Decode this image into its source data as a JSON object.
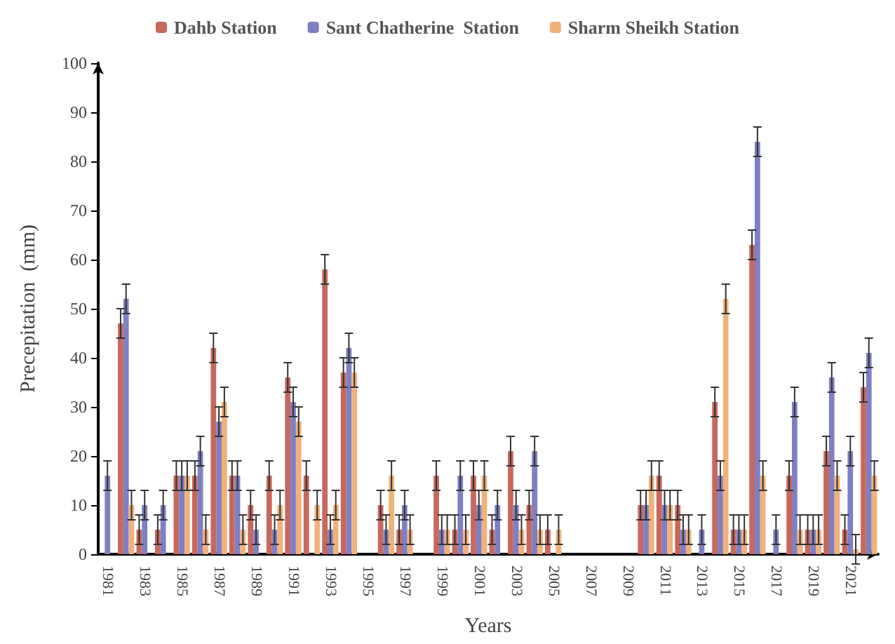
{
  "chart_data": {
    "type": "bar",
    "xlabel": "Years",
    "ylabel": "Precepitation  (mm)",
    "categories": [
      "1981",
      null,
      "1983",
      null,
      "1985",
      null,
      "1987",
      null,
      "1989",
      null,
      "1991",
      null,
      "1993",
      null,
      "1995",
      null,
      "1997",
      null,
      "1999",
      null,
      "2001",
      null,
      "2003",
      null,
      "2005",
      null,
      "2007",
      null,
      "2009",
      null,
      "2011",
      null,
      "2013",
      null,
      "2015",
      null,
      "2017",
      null,
      "2019",
      null,
      "2021",
      null
    ],
    "ylim": [
      0,
      100
    ],
    "yticks": [
      0,
      10,
      20,
      30,
      40,
      50,
      60,
      70,
      80,
      90,
      100
    ],
    "grid": false,
    "legend": "top",
    "series": [
      {
        "name": "Dahb Station",
        "color": "#c8685c",
        "values": [
          0,
          47,
          5,
          5,
          16,
          16,
          42,
          16,
          10,
          16,
          36,
          16,
          58,
          37,
          0,
          10,
          5,
          0,
          16,
          5,
          16,
          5,
          21,
          10,
          5,
          0,
          0,
          0,
          0,
          10,
          16,
          10,
          0,
          31,
          5,
          63,
          0,
          16,
          5,
          21,
          5,
          34
        ],
        "errors": [
          null,
          3,
          3,
          3,
          3,
          3,
          3,
          3,
          3,
          3,
          3,
          3,
          3,
          3,
          null,
          3,
          3,
          null,
          3,
          3,
          3,
          3,
          3,
          3,
          3,
          null,
          null,
          null,
          null,
          3,
          3,
          3,
          null,
          3,
          3,
          3,
          null,
          3,
          3,
          3,
          3,
          3
        ]
      },
      {
        "name": "Sant Chatherine  Station",
        "color": "#7f7fc4",
        "values": [
          16,
          52,
          10,
          10,
          16,
          21,
          27,
          16,
          5,
          5,
          31,
          0,
          5,
          42,
          0,
          5,
          10,
          0,
          5,
          16,
          10,
          10,
          10,
          21,
          0,
          0,
          0,
          0,
          0,
          10,
          10,
          5,
          5,
          16,
          5,
          84,
          5,
          31,
          5,
          36,
          21,
          41
        ],
        "errors": [
          3,
          3,
          3,
          3,
          3,
          3,
          3,
          3,
          3,
          3,
          3,
          null,
          3,
          3,
          null,
          3,
          3,
          null,
          3,
          3,
          3,
          3,
          3,
          3,
          null,
          null,
          null,
          null,
          null,
          3,
          3,
          3,
          3,
          3,
          3,
          3,
          3,
          3,
          3,
          3,
          3,
          3
        ]
      },
      {
        "name": "Sharm Sheikh Station",
        "color": "#f0b27a",
        "values": [
          0,
          10,
          0,
          0,
          16,
          5,
          31,
          5,
          0,
          10,
          27,
          10,
          10,
          37,
          0,
          16,
          5,
          0,
          5,
          5,
          16,
          0,
          5,
          5,
          5,
          0,
          0,
          0,
          0,
          16,
          10,
          5,
          0,
          52,
          5,
          16,
          0,
          5,
          5,
          16,
          1,
          16
        ],
        "errors": [
          null,
          3,
          null,
          null,
          3,
          3,
          3,
          3,
          null,
          3,
          3,
          3,
          3,
          3,
          null,
          3,
          3,
          null,
          3,
          3,
          3,
          null,
          3,
          3,
          3,
          null,
          null,
          null,
          null,
          3,
          3,
          3,
          null,
          3,
          3,
          3,
          null,
          3,
          3,
          3,
          3,
          3
        ]
      }
    ]
  }
}
